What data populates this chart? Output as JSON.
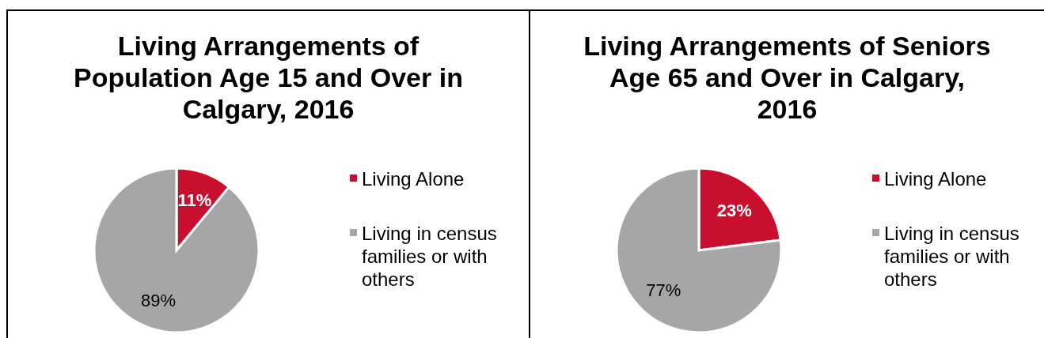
{
  "chart_data": [
    {
      "type": "pie",
      "title": "Living Arrangements of Population Age 15 and Over in Calgary, 2016",
      "categories": [
        "Living Alone",
        "Living in census families or with others"
      ],
      "values": [
        11,
        89
      ],
      "colors": [
        "#c8102e",
        "#a6a6a6"
      ],
      "value_labels": [
        "11%",
        "89%"
      ],
      "legend": "right"
    },
    {
      "type": "pie",
      "title": "Living Arrangements of Seniors Age 65 and Over in Calgary, 2016",
      "categories": [
        "Living Alone",
        "Living in census families or with others"
      ],
      "values": [
        23,
        77
      ],
      "colors": [
        "#c8102e",
        "#a6a6a6"
      ],
      "value_labels": [
        "23%",
        "77%"
      ],
      "legend": "right"
    }
  ]
}
